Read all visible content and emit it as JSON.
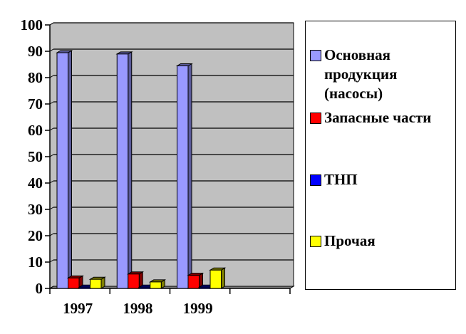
{
  "chart_data": {
    "type": "bar",
    "style": "3d-clustered-column",
    "categories": [
      "1997",
      "1998",
      "1999",
      ""
    ],
    "ylim": [
      0,
      100
    ],
    "yticks": [
      "0",
      "10",
      "20",
      "30",
      "40",
      "50",
      "60",
      "70",
      "80",
      "90",
      "100"
    ],
    "grid": true,
    "legend_position": "right",
    "series": [
      {
        "name": "Основная продукция (насосы)",
        "color": "#9999ff",
        "values": [
          90,
          89.5,
          85,
          null
        ]
      },
      {
        "name": "Запасные части",
        "color": "#ff0000",
        "values": [
          4.5,
          6,
          5.5,
          null
        ]
      },
      {
        "name": "ТНП",
        "color": "#0000ff",
        "values": [
          1,
          1,
          1,
          null
        ]
      },
      {
        "name": "Прочая",
        "color": "#ffff00",
        "values": [
          4,
          3,
          7.5,
          null
        ]
      }
    ],
    "plot_background": "#c0c0c0"
  }
}
